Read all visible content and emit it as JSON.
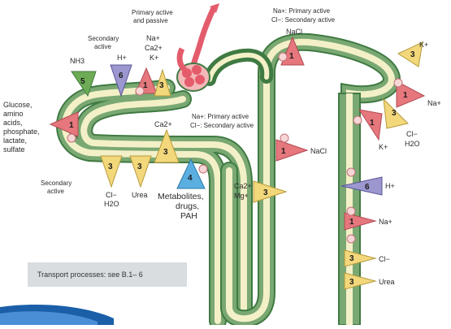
{
  "colors": {
    "tubule_green": "#7aa873",
    "tubule_dark": "#3f7a42",
    "tubule_inner": "#f3f0c8",
    "arrow_red": "#e5777d",
    "arrow_yellow": "#f3d77b",
    "arrow_blue": "#5aaee0",
    "arrow_purple": "#9c97cf",
    "arrow_green": "#6dab55",
    "pump": "#f7d6d6",
    "glomerulus": "#e45c6c",
    "banner_blue": "#1a5fa8"
  },
  "labels": {
    "primary_active_passive": [
      "Primary active",
      "and passive"
    ],
    "secondary_active_top": [
      "Secondary",
      "active"
    ],
    "nh3": "NH3",
    "h_top": "H+",
    "na_top": "Na+",
    "ca_top": "Ca2+",
    "k_top": "K+",
    "dt_na_line": "Na+: Primary active",
    "dt_cl_line": "Cl−: Secondary active",
    "nacl_top": "NaCl",
    "glucose": [
      "Glucose,",
      "amino",
      "acids,",
      "phosphate,",
      "lactate,",
      "sulfate"
    ],
    "secondary_active_left": [
      "Secondary",
      "active"
    ],
    "ca_mid": "Ca2+",
    "loop_na_line": "Na+: Primary active",
    "loop_cl_line": "Cl−: Secondary active",
    "nacl_mid": "NaCl",
    "cl_h2o_left": [
      "Cl−",
      "H2O"
    ],
    "urea_left": "Urea",
    "metabolites": [
      "Metabolites,",
      "drugs,",
      "PAH"
    ],
    "ca_mg": [
      "Ca2+",
      "Mg+"
    ],
    "k_right": "K+",
    "na_right": "Na+",
    "cl_h2o_right": [
      "Cl−",
      "H2O"
    ],
    "k_lower": "K+",
    "h_right": "H+",
    "na_cd": "Na+",
    "cl_cd": "Cl−",
    "urea_cd": "Urea"
  },
  "numbers": {
    "n5": "5",
    "n6": "6",
    "n1": "1",
    "n3": "3",
    "n4": "4"
  },
  "note": "Transport processes: see B.1– 6"
}
